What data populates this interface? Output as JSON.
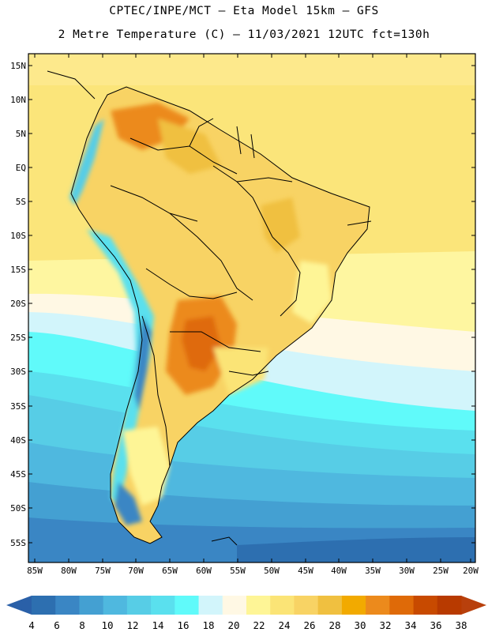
{
  "header": {
    "line1": "CPTEC/INPE/MCT –  Eta Model 15km – GFS",
    "line2": "2 Metre Temperature (C) – 11/03/2021 12UTC fct=130h"
  },
  "map": {
    "region": "South America",
    "lat_labels": [
      "15N",
      "10N",
      "5N",
      "EQ",
      "5S",
      "10S",
      "15S",
      "20S",
      "25S",
      "30S",
      "35S",
      "40S",
      "45S",
      "50S",
      "55S"
    ],
    "lon_labels": [
      "85W",
      "80W",
      "75W",
      "70W",
      "65W",
      "60W",
      "55W",
      "50W",
      "45W",
      "40W",
      "35W",
      "30W",
      "25W",
      "20W"
    ]
  },
  "colorbar": {
    "labels": [
      "4",
      "6",
      "8",
      "10",
      "12",
      "14",
      "16",
      "18",
      "20",
      "22",
      "24",
      "26",
      "28",
      "30",
      "32",
      "34",
      "36",
      "38"
    ],
    "colors": [
      "#2d6fb0",
      "#3a86c4",
      "#44a0d2",
      "#4fb8df",
      "#57cde6",
      "#5ae0ee",
      "#60fafa",
      "#d2f5fb",
      "#fff8e4",
      "#fef596",
      "#fbe476",
      "#f8d364",
      "#f0c040",
      "#f2aa00",
      "#ec8a1c",
      "#df6a08",
      "#c84a00",
      "#b83a00"
    ],
    "under_color": "#2a60a8",
    "over_color": "#b8400c"
  }
}
